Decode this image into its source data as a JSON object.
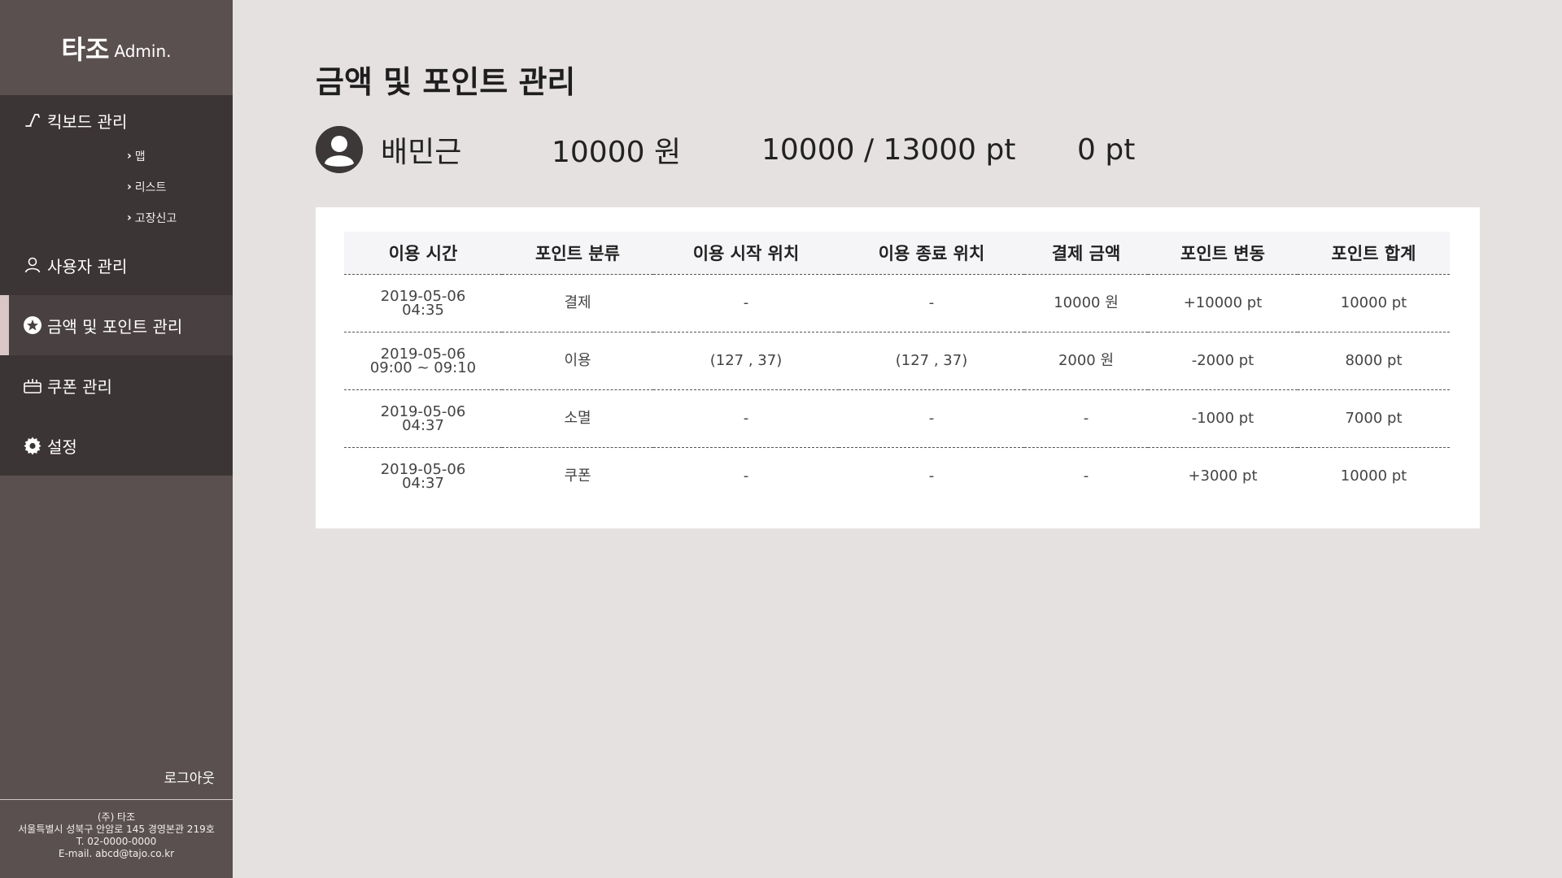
{
  "brand": {
    "main": "타조",
    "sub": "Admin."
  },
  "sidebar": {
    "kickboard": {
      "label": "킥보드 관리",
      "subitems": [
        {
          "label": "맵"
        },
        {
          "label": "리스트"
        },
        {
          "label": "고장신고"
        }
      ]
    },
    "items": [
      {
        "label": "사용자 관리",
        "icon": "user-icon"
      },
      {
        "label": "금액 및 포인트 관리",
        "icon": "star-icon",
        "active": true
      },
      {
        "label": "쿠폰 관리",
        "icon": "coupon-icon"
      },
      {
        "label": "설정",
        "icon": "gear-icon"
      }
    ],
    "logout": "로그아웃",
    "footer": {
      "company": "(주) 타조",
      "address": "서울특별시 성북구 안암로 145 경영본관 219호",
      "phone": "T. 02-0000-0000",
      "email": "E-mail. abcd@tajo.co.kr"
    }
  },
  "page": {
    "title": "금액 및 포인트 관리"
  },
  "summary": {
    "name": "배민근",
    "money": "10000 원",
    "points": "10000 / 13000 pt",
    "extra": "0 pt"
  },
  "table": {
    "headers": [
      "이용 시간",
      "포인트 분류",
      "이용 시작 위치",
      "이용 종료 위치",
      "결제 금액",
      "포인트 변동",
      "포인트 합계"
    ],
    "rows": [
      {
        "date": "2019-05-06",
        "time": "04:35",
        "type": "결제",
        "start": "-",
        "end": "-",
        "pay": "10000 원",
        "change": "+10000 pt",
        "total": "10000 pt"
      },
      {
        "date": "2019-05-06",
        "time": "09:00 ~ 09:10",
        "type": "이용",
        "start": "(127 , 37)",
        "end": "(127 , 37)",
        "pay": "2000 원",
        "change": "-2000 pt",
        "total": "8000 pt"
      },
      {
        "date": "2019-05-06",
        "time": "04:37",
        "type": "소멸",
        "start": "-",
        "end": "-",
        "pay": "-",
        "change": "-1000 pt",
        "total": "7000 pt"
      },
      {
        "date": "2019-05-06",
        "time": "04:37",
        "type": "쿠폰",
        "start": "-",
        "end": "-",
        "pay": "-",
        "change": "+3000 pt",
        "total": "10000 pt"
      }
    ]
  }
}
